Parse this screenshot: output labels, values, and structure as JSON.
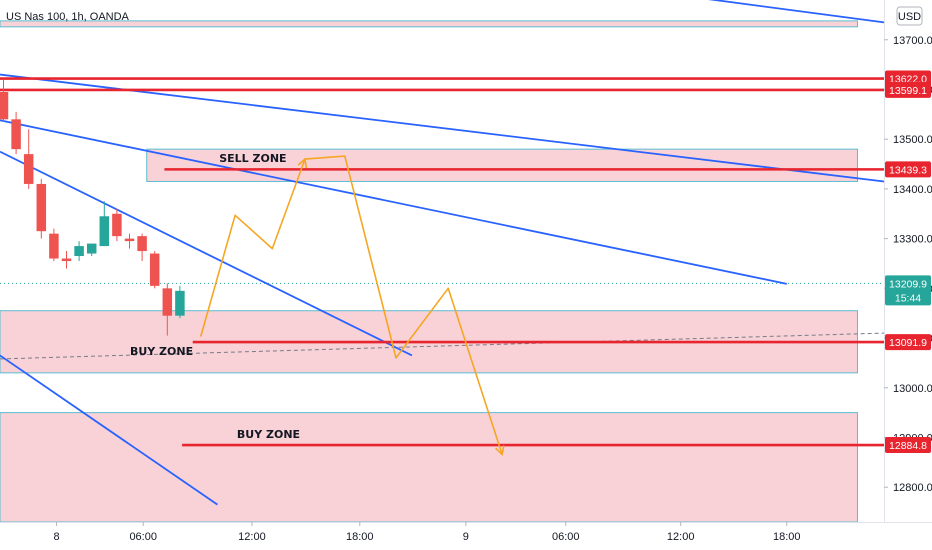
{
  "header": {
    "symbol_title": "US Nas 100, 1h, OANDA",
    "currency_button": "USD"
  },
  "colors": {
    "background": "#ffffff",
    "axis_text": "#131722",
    "bull": "#26a69a",
    "bear": "#ef5350",
    "resistance_line": "#e8242f",
    "trend_line": "#2962ff",
    "zone_fill": "#f9d2d8",
    "zone_border": "#5bbcd0",
    "projection": "#f5a623",
    "current_price": "#26a69a"
  },
  "chart_data": {
    "type": "candlestick",
    "y_axis": {
      "min": 12730,
      "max": 13780,
      "ticks": [
        "13700.0",
        "13600.0",
        "13500.0",
        "13400.0",
        "13300.0",
        "13200.0",
        "13100.0",
        "13000.0",
        "12900.0",
        "12800.0"
      ],
      "tick_values": [
        13700,
        13600,
        13500,
        13400,
        13300,
        13200,
        13100,
        13000,
        12900,
        12800
      ]
    },
    "x_axis": {
      "ticks": [
        {
          "label": "8",
          "pos": 0.064
        },
        {
          "label": "06:00",
          "pos": 0.162
        },
        {
          "label": "12:00",
          "pos": 0.285
        },
        {
          "label": "18:00",
          "pos": 0.407
        },
        {
          "label": "9",
          "pos": 0.527
        },
        {
          "label": "06:00",
          "pos": 0.64
        },
        {
          "label": "12:00",
          "pos": 0.77
        },
        {
          "label": "18:00",
          "pos": 0.89
        }
      ]
    },
    "candles": [
      {
        "o": 13595,
        "h": 13620,
        "c": 13540,
        "l": 13535
      },
      {
        "o": 13540,
        "h": 13555,
        "c": 13480,
        "l": 13470
      },
      {
        "o": 13470,
        "h": 13520,
        "c": 13410,
        "l": 13400
      },
      {
        "o": 13410,
        "h": 13420,
        "c": 13315,
        "l": 13300
      },
      {
        "o": 13310,
        "h": 13320,
        "c": 13260,
        "l": 13255
      },
      {
        "o": 13260,
        "h": 13275,
        "c": 13255,
        "l": 13240
      },
      {
        "o": 13265,
        "h": 13295,
        "c": 13285,
        "l": 13255
      },
      {
        "o": 13270,
        "h": 13290,
        "c": 13290,
        "l": 13265
      },
      {
        "o": 13285,
        "h": 13375,
        "c": 13345,
        "l": 13285
      },
      {
        "o": 13350,
        "h": 13360,
        "c": 13305,
        "l": 13295
      },
      {
        "o": 13300,
        "h": 13310,
        "c": 13295,
        "l": 13280
      },
      {
        "o": 13305,
        "h": 13310,
        "c": 13275,
        "l": 13255
      },
      {
        "o": 13270,
        "h": 13275,
        "c": 13205,
        "l": 13200
      },
      {
        "o": 13200,
        "h": 13210,
        "c": 13145,
        "l": 13105
      },
      {
        "o": 13145,
        "h": 13205,
        "c": 13195,
        "l": 13140
      }
    ],
    "zones": [
      {
        "name": "top-band",
        "y1": 13738,
        "y2": 13726,
        "x1": 0.0,
        "x2": 0.97
      },
      {
        "name": "sell-zone",
        "y1": 13480,
        "y2": 13415,
        "x1": 0.166,
        "x2": 0.97,
        "label": "SELL ZONE",
        "label_x": 0.248
      },
      {
        "name": "buy-zone-1",
        "y1": 13155,
        "y2": 13030,
        "x1": 0.0,
        "x2": 0.97,
        "label": "BUY ZONE",
        "label_x": 0.147
      },
      {
        "name": "buy-zone-2",
        "y1": 12950,
        "y2": 12730,
        "x1": 0.0,
        "x2": 0.97,
        "label": "BUY ZONE",
        "label_x": 0.268
      }
    ],
    "horizontal_levels": [
      {
        "price": 13622.0,
        "label": "13622.0",
        "x1": 0.0
      },
      {
        "price": 13599.1,
        "label": "13599.1",
        "x1": 0.0
      },
      {
        "price": 13439.3,
        "label": "13439.3",
        "x1": 0.186
      },
      {
        "price": 13091.9,
        "label": "13091.9",
        "x1": 0.218
      },
      {
        "price": 12884.8,
        "label": "12884.8",
        "x1": 0.206
      }
    ],
    "trend_lines": [
      {
        "points": [
          [
            0.728,
            13799
          ],
          [
            1.0,
            13735
          ]
        ]
      },
      {
        "points": [
          [
            0.0,
            13630
          ],
          [
            1.0,
            13415
          ]
        ]
      },
      {
        "points": [
          [
            0.0,
            13538
          ],
          [
            0.89,
            13209
          ]
        ]
      },
      {
        "points": [
          [
            0.0,
            13475
          ],
          [
            0.466,
            13065
          ]
        ]
      },
      {
        "points": [
          [
            0.0,
            13065
          ],
          [
            0.246,
            12765
          ]
        ]
      }
    ],
    "dashed_lines": [
      {
        "points": [
          [
            0.0,
            13058
          ],
          [
            1.0,
            13110
          ]
        ]
      }
    ],
    "projection": [
      [
        0.227,
        13103
      ],
      [
        0.266,
        13347
      ],
      [
        0.308,
        13280
      ],
      [
        0.345,
        13460
      ],
      [
        0.39,
        13466
      ],
      [
        0.448,
        13060
      ],
      [
        0.507,
        13200
      ],
      [
        0.568,
        12866
      ]
    ],
    "current_price": {
      "price": 13209.9,
      "label": "13209.9",
      "countdown": "15:44"
    }
  }
}
